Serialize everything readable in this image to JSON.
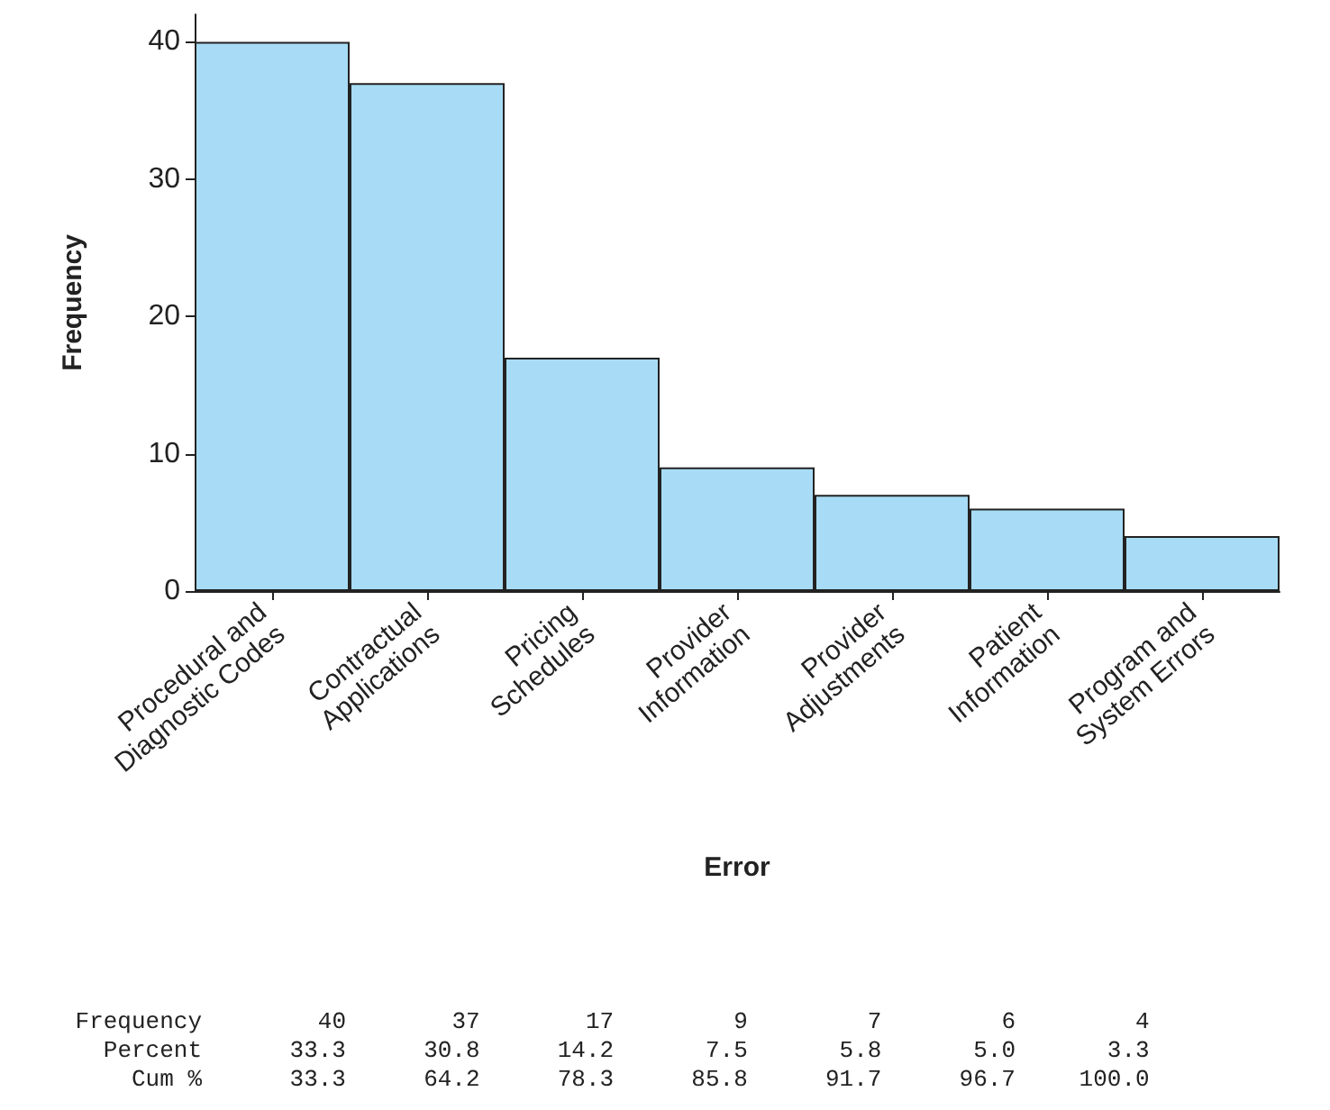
{
  "chart_data": {
    "type": "bar",
    "xlabel": "Error",
    "ylabel": "Frequency",
    "categories": [
      "Procedural and\nDiagnostic Codes",
      "Contractual\nApplications",
      "Pricing\nSchedules",
      "Provider\nInformation",
      "Provider\nAdjustments",
      "Patient\nInformation",
      "Program and\nSystem Errors"
    ],
    "values": [
      40,
      37,
      17,
      9,
      7,
      6,
      4
    ],
    "color": "#a8dcf6",
    "ylim": [
      0,
      42
    ],
    "yticks": [
      0,
      10,
      20,
      30,
      40
    ],
    "grid": false,
    "data_labels": true,
    "annotations": [
      "Frequency",
      "Percent",
      "33.3",
      "30.8",
      "14.2",
      "7.5",
      "5.8",
      "5.0",
      "3.3",
      "Cum %",
      "33.3",
      "64.2",
      "78.3",
      "85.8",
      "91.7",
      "96.7",
      "100.0"
    ]
  }
}
